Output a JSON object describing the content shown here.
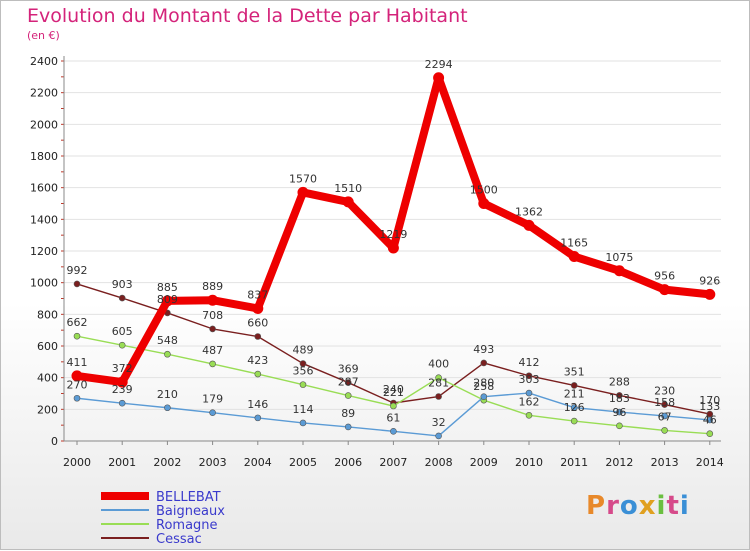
{
  "title": "Evolution du Montant de la Dette par Habitant",
  "unit": "(en €)",
  "logo": "Proxiti",
  "chart_data": {
    "type": "line",
    "title": "Evolution du Montant de la Dette par Habitant",
    "ylabel": "(en €)",
    "ylim": [
      0,
      2400
    ],
    "yticks": [
      0,
      200,
      400,
      600,
      800,
      1000,
      1200,
      1400,
      1600,
      1800,
      2000,
      2200,
      2400
    ],
    "categories": [
      "2000",
      "2001",
      "2002",
      "2003",
      "2004",
      "2005",
      "2006",
      "2007",
      "2008",
      "2009",
      "2010",
      "2011",
      "2012",
      "2013",
      "2014"
    ],
    "legend_position": "bottom-left",
    "series": [
      {
        "name": "BELLEBAT",
        "color": "#ee0000",
        "values": [
          411,
          372,
          885,
          889,
          837,
          1570,
          1510,
          1219,
          2294,
          1500,
          1362,
          1165,
          1075,
          956,
          926
        ]
      },
      {
        "name": "Baigneaux",
        "color": "#5b9bd5",
        "values": [
          270,
          239,
          210,
          179,
          146,
          114,
          89,
          61,
          32,
          280,
          303,
          211,
          183,
          158,
          133
        ]
      },
      {
        "name": "Romagne",
        "color": "#99dd55",
        "values": [
          662,
          605,
          548,
          487,
          423,
          356,
          287,
          221,
          400,
          258,
          162,
          126,
          96,
          67,
          46
        ]
      },
      {
        "name": "Cessac",
        "color": "#7a1f1f",
        "values": [
          992,
          903,
          809,
          708,
          660,
          489,
          369,
          240,
          281,
          493,
          412,
          351,
          288,
          230,
          170
        ]
      }
    ]
  }
}
